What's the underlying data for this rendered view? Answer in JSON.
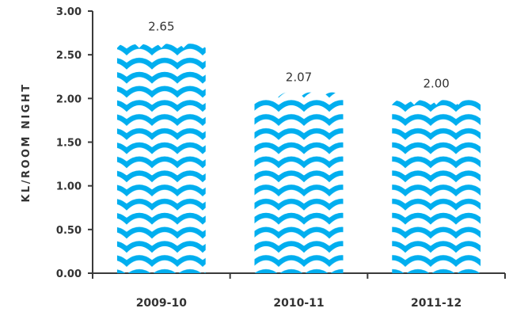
{
  "chart_data": {
    "type": "bar",
    "ylabel": "KL/ROOM NIGHT",
    "categories": [
      "2009-10",
      "2010-11",
      "2011-12"
    ],
    "values": [
      2.65,
      2.07,
      2.0
    ],
    "data_labels": [
      "2.65",
      "2.07",
      "2.00"
    ],
    "ylim": [
      0,
      3.0
    ],
    "yticks": [
      "0.00",
      "0.50",
      "1.00",
      "1.50",
      "2.00",
      "2.50",
      "3.00"
    ],
    "grid": false,
    "legend": "none",
    "bar_style": "water-wave pattern",
    "bar_color": "#00aeef"
  }
}
